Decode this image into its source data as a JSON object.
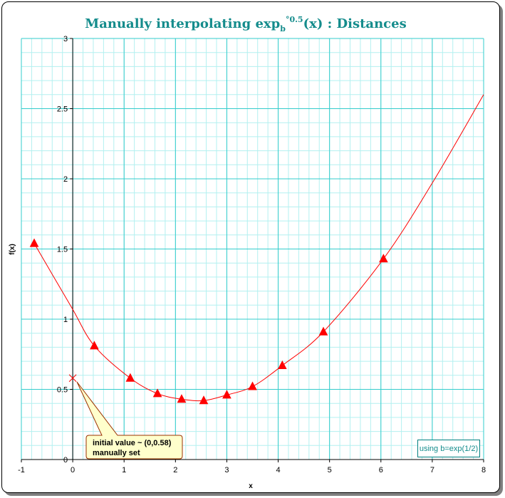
{
  "chart_data": {
    "type": "line",
    "title_main": "Manually interpolating exp",
    "title_sub": "b",
    "title_sup": "°0.5",
    "title_tail": "(x) : Distances",
    "xlabel": "x",
    "ylabel": "f(x)",
    "xlim": [
      -1,
      8
    ],
    "ylim": [
      0,
      3
    ],
    "xticks": [
      "-1",
      "0",
      "1",
      "2",
      "3",
      "4",
      "5",
      "6",
      "7",
      "8"
    ],
    "yticks": [
      "0",
      "0.5",
      "1",
      "1.5",
      "2",
      "2.5",
      "3"
    ],
    "grid": true,
    "series": [
      {
        "marker": "triangle",
        "color": "#ff0000",
        "x": [
          -0.75,
          0.42,
          1.12,
          1.65,
          2.12,
          2.55,
          3.0,
          3.5,
          4.08,
          4.88,
          6.05
        ],
        "y": [
          1.54,
          0.81,
          0.58,
          0.47,
          0.43,
          0.42,
          0.46,
          0.52,
          0.67,
          0.91,
          1.43
        ]
      },
      {
        "marker": "none",
        "color": "#ff0000",
        "x": [
          -0.75,
          -0.4,
          0.0,
          0.42,
          1.12,
          1.65,
          2.12,
          2.55,
          3.0,
          3.5,
          4.08,
          4.88,
          6.05,
          7.0,
          8.0
        ],
        "y": [
          1.54,
          1.32,
          1.07,
          0.81,
          0.58,
          0.47,
          0.43,
          0.42,
          0.46,
          0.52,
          0.67,
          0.91,
          1.43,
          1.97,
          2.6
        ]
      }
    ],
    "initial_point": {
      "x": 0,
      "y": 0.58,
      "marker": "x"
    },
    "callout": {
      "line1": "initial value ~ (0,0.58)",
      "line2": "manually set"
    },
    "note": "using b=exp(1/2)",
    "colors": {
      "major_grid": "#33cccc",
      "minor_grid": "#b3f0f0",
      "title": "#148c8c",
      "callout_fill": "#ffffcc",
      "callout_border": "#993300"
    }
  }
}
